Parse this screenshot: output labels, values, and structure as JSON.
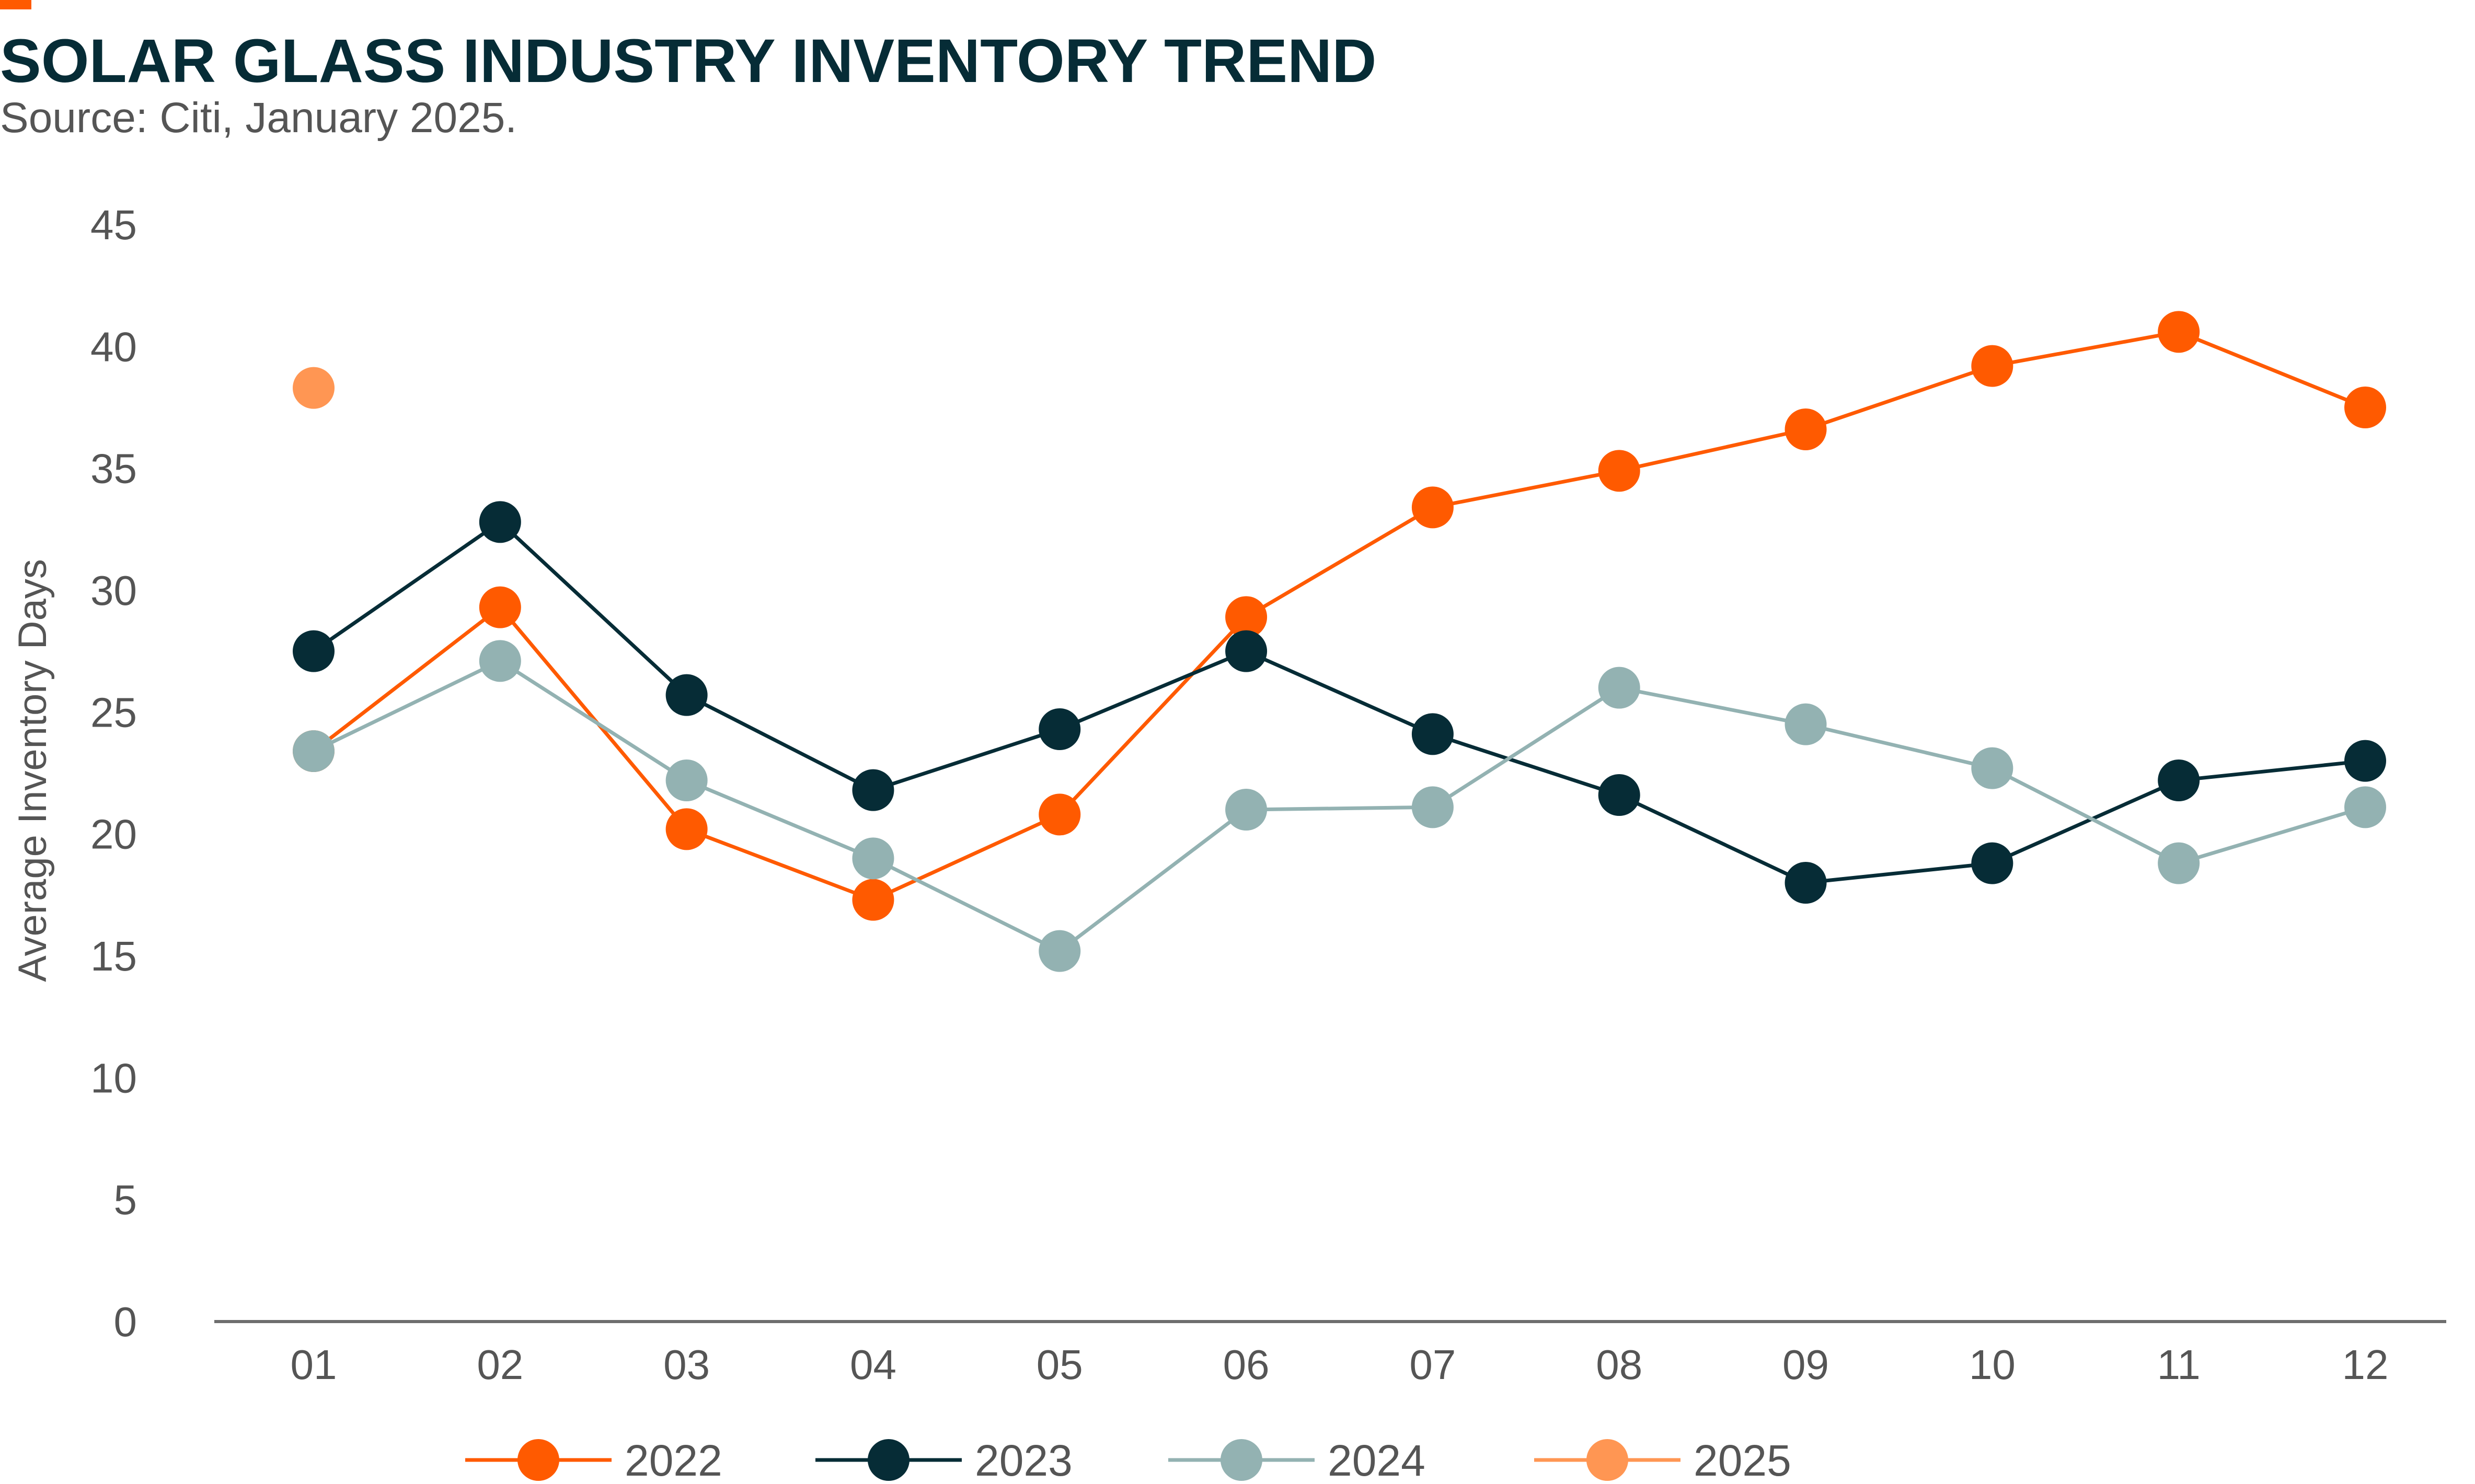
{
  "header": {
    "title": "SOLAR GLASS INDUSTRY INVENTORY TREND",
    "subtitle": "Source: Citi, January 2025."
  },
  "colors": {
    "accent": "#FF5A00",
    "title": "#062C36",
    "axis": "#555555"
  },
  "chart_data": {
    "type": "line",
    "ylabel": "Average Inventory Days",
    "xlabel": "",
    "ylim": [
      0,
      45
    ],
    "yticks": [
      0,
      5,
      10,
      15,
      20,
      25,
      30,
      35,
      40,
      45
    ],
    "grid": false,
    "legend_position": "bottom",
    "categories": [
      "01",
      "02",
      "03",
      "04",
      "05",
      "06",
      "07",
      "08",
      "09",
      "10",
      "11",
      "12"
    ],
    "series": [
      {
        "name": "2022",
        "color": "#FF5A00",
        "values": [
          23.4,
          29.3,
          20.2,
          17.3,
          20.8,
          28.9,
          33.4,
          34.9,
          36.6,
          39.2,
          40.6,
          37.5
        ]
      },
      {
        "name": "2023",
        "color": "#062C36",
        "values": [
          27.5,
          32.8,
          25.7,
          21.8,
          24.3,
          27.5,
          24.1,
          21.6,
          18.0,
          18.8,
          22.2,
          23.0
        ]
      },
      {
        "name": "2024",
        "color": "#93B2B2",
        "values": [
          23.4,
          27.1,
          22.2,
          19.0,
          15.2,
          21.0,
          21.1,
          26.0,
          24.5,
          22.7,
          18.8,
          21.1
        ]
      },
      {
        "name": "2025",
        "color": "#FF9653",
        "values": [
          38.3,
          null,
          null,
          null,
          null,
          null,
          null,
          null,
          null,
          null,
          null,
          null
        ]
      }
    ]
  }
}
